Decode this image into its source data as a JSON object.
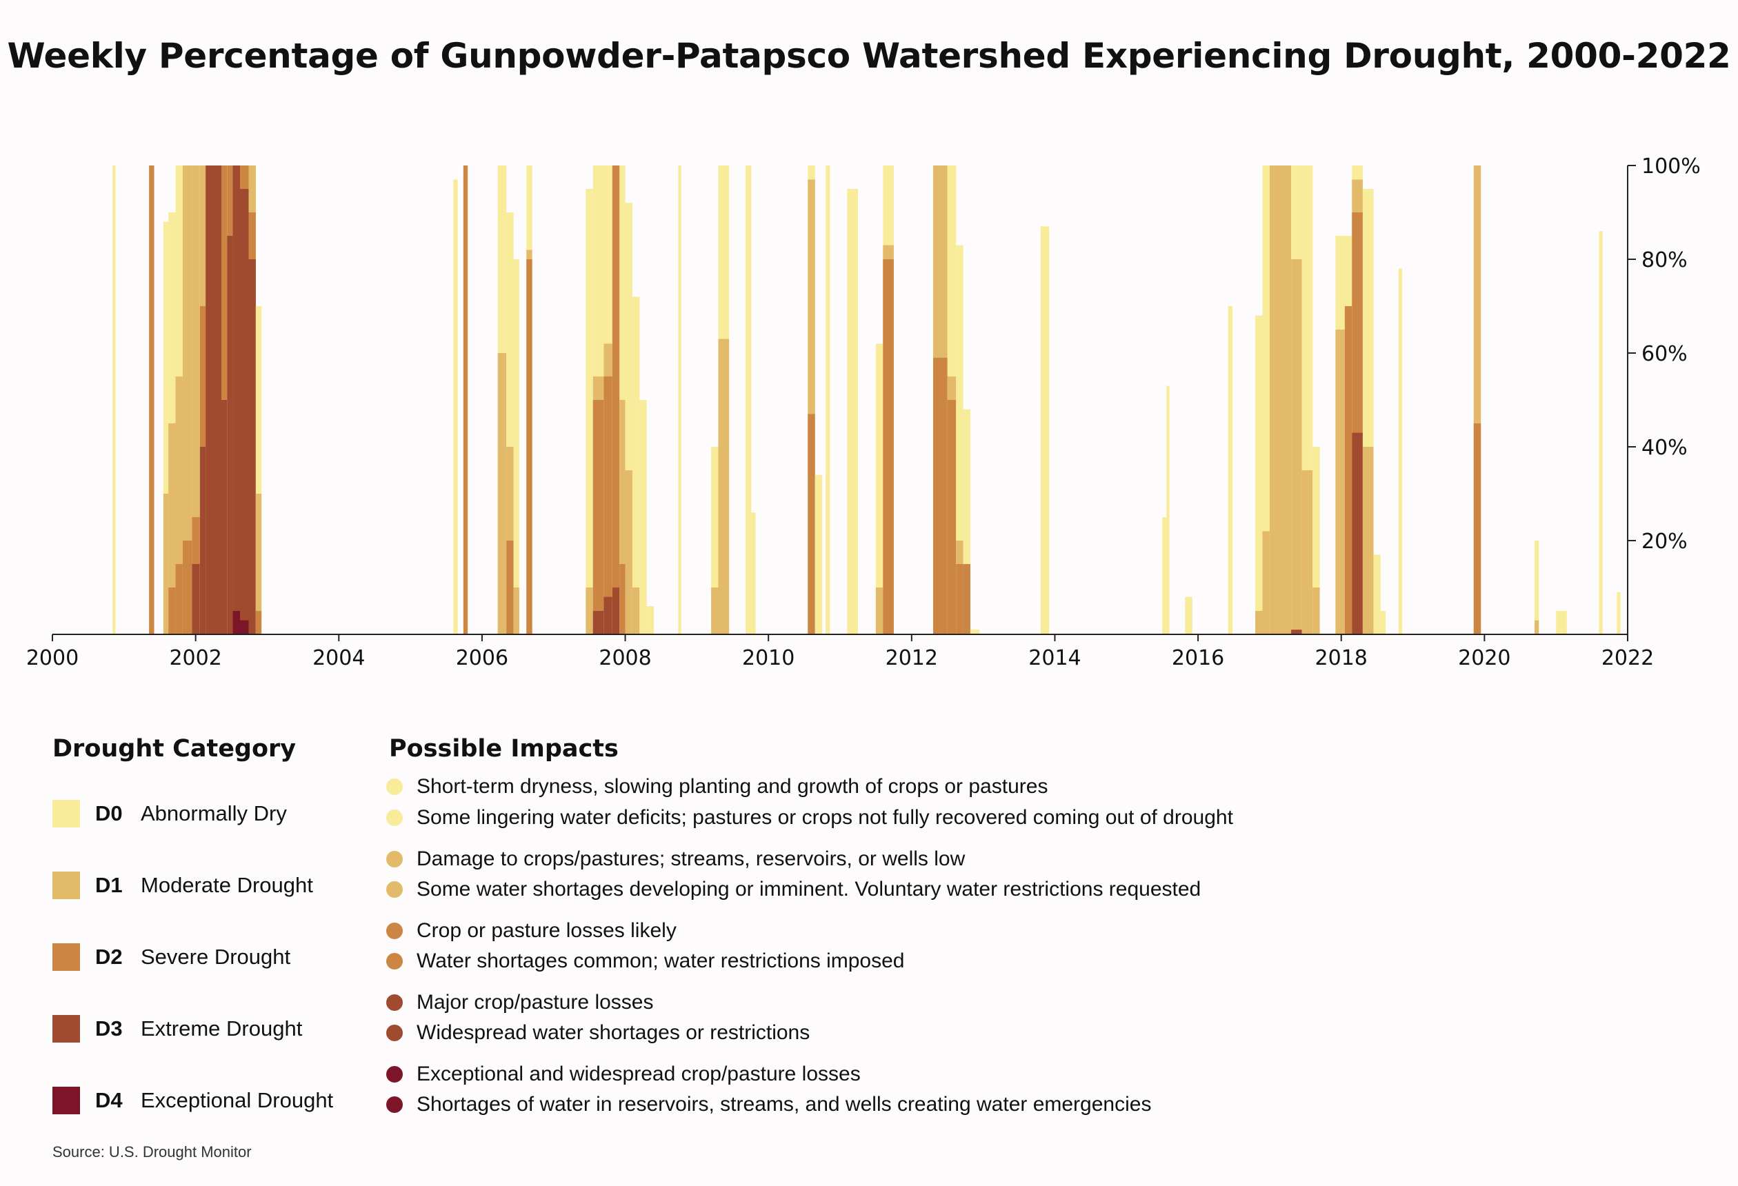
{
  "chart_data": {
    "type": "area",
    "title": "Weekly Percentage of Gunpowder-Patapsco Watershed Experiencing Drought, 2000-2022",
    "xlabel": "",
    "ylabel": "",
    "xlim": [
      2000,
      2022
    ],
    "ylim": [
      0,
      100
    ],
    "x_ticks": [
      2000,
      2002,
      2004,
      2006,
      2008,
      2010,
      2012,
      2014,
      2016,
      2018,
      2020,
      2022
    ],
    "y_ticks": [
      20,
      40,
      60,
      80,
      100
    ],
    "y_tick_labels": [
      "20%",
      "40%",
      "60%",
      "80%",
      "100%"
    ],
    "y_axis_side": "right",
    "series_colors": {
      "D0": "#f8eb9a",
      "D1": "#e3b96a",
      "D2": "#cd8544",
      "D3": "#a04b30",
      "D4": "#7b1527"
    },
    "episodes": [
      {
        "x0": 2000.84,
        "x1": 2000.88,
        "D0": 100,
        "D1": 0,
        "D2": 0,
        "D3": 0,
        "D4": 0
      },
      {
        "x0": 2001.35,
        "x1": 2001.42,
        "D0": 100,
        "D1": 100,
        "D2": 100,
        "D3": 0,
        "D4": 0
      },
      {
        "x0": 2001.55,
        "x1": 2001.62,
        "D0": 88,
        "D1": 30,
        "D2": 0,
        "D3": 0,
        "D4": 0
      },
      {
        "x0": 2001.62,
        "x1": 2001.72,
        "D0": 90,
        "D1": 45,
        "D2": 10,
        "D3": 0,
        "D4": 0
      },
      {
        "x0": 2001.72,
        "x1": 2001.82,
        "D0": 100,
        "D1": 55,
        "D2": 15,
        "D3": 0,
        "D4": 0
      },
      {
        "x0": 2001.82,
        "x1": 2001.95,
        "D0": 100,
        "D1": 100,
        "D2": 20,
        "D3": 0,
        "D4": 0
      },
      {
        "x0": 2001.95,
        "x1": 2002.06,
        "D0": 100,
        "D1": 100,
        "D2": 25,
        "D3": 15,
        "D4": 0
      },
      {
        "x0": 2002.06,
        "x1": 2002.14,
        "D0": 100,
        "D1": 100,
        "D2": 70,
        "D3": 40,
        "D4": 0
      },
      {
        "x0": 2002.14,
        "x1": 2002.36,
        "D0": 100,
        "D1": 100,
        "D2": 100,
        "D3": 100,
        "D4": 0
      },
      {
        "x0": 2002.36,
        "x1": 2002.44,
        "D0": 100,
        "D1": 100,
        "D2": 100,
        "D3": 50,
        "D4": 0
      },
      {
        "x0": 2002.44,
        "x1": 2002.52,
        "D0": 100,
        "D1": 100,
        "D2": 100,
        "D3": 85,
        "D4": 0
      },
      {
        "x0": 2002.52,
        "x1": 2002.62,
        "D0": 100,
        "D1": 100,
        "D2": 100,
        "D3": 100,
        "D4": 5
      },
      {
        "x0": 2002.62,
        "x1": 2002.74,
        "D0": 100,
        "D1": 100,
        "D2": 100,
        "D3": 95,
        "D4": 3
      },
      {
        "x0": 2002.74,
        "x1": 2002.84,
        "D0": 100,
        "D1": 100,
        "D2": 90,
        "D3": 80,
        "D4": 0
      },
      {
        "x0": 2002.84,
        "x1": 2002.92,
        "D0": 70,
        "D1": 30,
        "D2": 5,
        "D3": 0,
        "D4": 0
      },
      {
        "x0": 2005.6,
        "x1": 2005.66,
        "D0": 97,
        "D1": 0,
        "D2": 0,
        "D3": 0,
        "D4": 0
      },
      {
        "x0": 2005.74,
        "x1": 2005.8,
        "D0": 100,
        "D1": 100,
        "D2": 100,
        "D3": 0,
        "D4": 0
      },
      {
        "x0": 2006.22,
        "x1": 2006.34,
        "D0": 100,
        "D1": 60,
        "D2": 0,
        "D3": 0,
        "D4": 0
      },
      {
        "x0": 2006.34,
        "x1": 2006.44,
        "D0": 90,
        "D1": 40,
        "D2": 20,
        "D3": 0,
        "D4": 0
      },
      {
        "x0": 2006.44,
        "x1": 2006.52,
        "D0": 80,
        "D1": 10,
        "D2": 0,
        "D3": 0,
        "D4": 0
      },
      {
        "x0": 2006.62,
        "x1": 2006.7,
        "D0": 100,
        "D1": 82,
        "D2": 80,
        "D3": 0,
        "D4": 0
      },
      {
        "x0": 2007.45,
        "x1": 2007.55,
        "D0": 95,
        "D1": 10,
        "D2": 0,
        "D3": 0,
        "D4": 0
      },
      {
        "x0": 2007.55,
        "x1": 2007.7,
        "D0": 100,
        "D1": 55,
        "D2": 50,
        "D3": 5,
        "D4": 0
      },
      {
        "x0": 2007.7,
        "x1": 2007.82,
        "D0": 100,
        "D1": 62,
        "D2": 55,
        "D3": 8,
        "D4": 0
      },
      {
        "x0": 2007.82,
        "x1": 2007.92,
        "D0": 100,
        "D1": 100,
        "D2": 100,
        "D3": 10,
        "D4": 0
      },
      {
        "x0": 2007.92,
        "x1": 2008.0,
        "D0": 100,
        "D1": 50,
        "D2": 15,
        "D3": 0,
        "D4": 0
      },
      {
        "x0": 2008.0,
        "x1": 2008.1,
        "D0": 92,
        "D1": 35,
        "D2": 0,
        "D3": 0,
        "D4": 0
      },
      {
        "x0": 2008.1,
        "x1": 2008.2,
        "D0": 72,
        "D1": 10,
        "D2": 0,
        "D3": 0,
        "D4": 0
      },
      {
        "x0": 2008.2,
        "x1": 2008.3,
        "D0": 50,
        "D1": 0,
        "D2": 0,
        "D3": 0,
        "D4": 0
      },
      {
        "x0": 2008.3,
        "x1": 2008.4,
        "D0": 6,
        "D1": 0,
        "D2": 0,
        "D3": 0,
        "D4": 0
      },
      {
        "x0": 2008.74,
        "x1": 2008.78,
        "D0": 100,
        "D1": 0,
        "D2": 0,
        "D3": 0,
        "D4": 0
      },
      {
        "x0": 2009.2,
        "x1": 2009.3,
        "D0": 40,
        "D1": 10,
        "D2": 0,
        "D3": 0,
        "D4": 0
      },
      {
        "x0": 2009.3,
        "x1": 2009.45,
        "D0": 100,
        "D1": 63,
        "D2": 0,
        "D3": 0,
        "D4": 0
      },
      {
        "x0": 2009.68,
        "x1": 2009.76,
        "D0": 100,
        "D1": 0,
        "D2": 0,
        "D3": 0,
        "D4": 0
      },
      {
        "x0": 2009.76,
        "x1": 2009.82,
        "D0": 26,
        "D1": 0,
        "D2": 0,
        "D3": 0,
        "D4": 0
      },
      {
        "x0": 2010.55,
        "x1": 2010.65,
        "D0": 100,
        "D1": 97,
        "D2": 47,
        "D3": 0,
        "D4": 0
      },
      {
        "x0": 2010.65,
        "x1": 2010.75,
        "D0": 34,
        "D1": 0,
        "D2": 0,
        "D3": 0,
        "D4": 0
      },
      {
        "x0": 2010.8,
        "x1": 2010.86,
        "D0": 100,
        "D1": 0,
        "D2": 0,
        "D3": 0,
        "D4": 0
      },
      {
        "x0": 2011.1,
        "x1": 2011.25,
        "D0": 95,
        "D1": 0,
        "D2": 0,
        "D3": 0,
        "D4": 0
      },
      {
        "x0": 2011.5,
        "x1": 2011.6,
        "D0": 62,
        "D1": 10,
        "D2": 0,
        "D3": 0,
        "D4": 0
      },
      {
        "x0": 2011.6,
        "x1": 2011.75,
        "D0": 100,
        "D1": 83,
        "D2": 80,
        "D3": 0,
        "D4": 0
      },
      {
        "x0": 2012.3,
        "x1": 2012.5,
        "D0": 100,
        "D1": 100,
        "D2": 59,
        "D3": 0,
        "D4": 0
      },
      {
        "x0": 2012.5,
        "x1": 2012.62,
        "D0": 100,
        "D1": 55,
        "D2": 50,
        "D3": 0,
        "D4": 0
      },
      {
        "x0": 2012.62,
        "x1": 2012.72,
        "D0": 83,
        "D1": 20,
        "D2": 15,
        "D3": 0,
        "D4": 0
      },
      {
        "x0": 2012.72,
        "x1": 2012.82,
        "D0": 48,
        "D1": 15,
        "D2": 15,
        "D3": 0,
        "D4": 0
      },
      {
        "x0": 2012.82,
        "x1": 2012.95,
        "D0": 1,
        "D1": 0,
        "D2": 0,
        "D3": 0,
        "D4": 0
      },
      {
        "x0": 2013.8,
        "x1": 2013.92,
        "D0": 87,
        "D1": 0,
        "D2": 0,
        "D3": 0,
        "D4": 0
      },
      {
        "x0": 2015.5,
        "x1": 2015.56,
        "D0": 25,
        "D1": 0,
        "D2": 0,
        "D3": 0,
        "D4": 0
      },
      {
        "x0": 2015.56,
        "x1": 2015.6,
        "D0": 53,
        "D1": 0,
        "D2": 0,
        "D3": 0,
        "D4": 0
      },
      {
        "x0": 2015.82,
        "x1": 2015.92,
        "D0": 8,
        "D1": 0,
        "D2": 0,
        "D3": 0,
        "D4": 0
      },
      {
        "x0": 2016.42,
        "x1": 2016.48,
        "D0": 70,
        "D1": 0,
        "D2": 0,
        "D3": 0,
        "D4": 0
      },
      {
        "x0": 2016.8,
        "x1": 2016.9,
        "D0": 68,
        "D1": 5,
        "D2": 0,
        "D3": 0,
        "D4": 0
      },
      {
        "x0": 2016.9,
        "x1": 2017.0,
        "D0": 100,
        "D1": 22,
        "D2": 0,
        "D3": 0,
        "D4": 0
      },
      {
        "x0": 2017.0,
        "x1": 2017.3,
        "D0": 100,
        "D1": 100,
        "D2": 0,
        "D3": 0,
        "D4": 0
      },
      {
        "x0": 2017.3,
        "x1": 2017.45,
        "D0": 100,
        "D1": 80,
        "D2": 0,
        "D3": 1,
        "D4": 0
      },
      {
        "x0": 2017.45,
        "x1": 2017.6,
        "D0": 100,
        "D1": 35,
        "D2": 0,
        "D3": 0,
        "D4": 0
      },
      {
        "x0": 2017.6,
        "x1": 2017.7,
        "D0": 40,
        "D1": 10,
        "D2": 0,
        "D3": 0,
        "D4": 0
      },
      {
        "x0": 2017.92,
        "x1": 2018.05,
        "D0": 85,
        "D1": 65,
        "D2": 0,
        "D3": 0,
        "D4": 0
      },
      {
        "x0": 2018.05,
        "x1": 2018.15,
        "D0": 85,
        "D1": 70,
        "D2": 70,
        "D3": 0,
        "D4": 0
      },
      {
        "x0": 2018.15,
        "x1": 2018.3,
        "D0": 100,
        "D1": 97,
        "D2": 90,
        "D3": 43,
        "D4": 0
      },
      {
        "x0": 2018.3,
        "x1": 2018.45,
        "D0": 95,
        "D1": 40,
        "D2": 0,
        "D3": 0,
        "D4": 0
      },
      {
        "x0": 2018.45,
        "x1": 2018.55,
        "D0": 17,
        "D1": 0,
        "D2": 0,
        "D3": 0,
        "D4": 0
      },
      {
        "x0": 2018.55,
        "x1": 2018.62,
        "D0": 5,
        "D1": 0,
        "D2": 0,
        "D3": 0,
        "D4": 0
      },
      {
        "x0": 2018.8,
        "x1": 2018.85,
        "D0": 78,
        "D1": 0,
        "D2": 0,
        "D3": 0,
        "D4": 0
      },
      {
        "x0": 2019.85,
        "x1": 2019.95,
        "D0": 100,
        "D1": 100,
        "D2": 45,
        "D3": 0,
        "D4": 0
      },
      {
        "x0": 2020.7,
        "x1": 2020.76,
        "D0": 20,
        "D1": 3,
        "D2": 0,
        "D3": 0,
        "D4": 0
      },
      {
        "x0": 2021.0,
        "x1": 2021.15,
        "D0": 5,
        "D1": 0,
        "D2": 0,
        "D3": 0,
        "D4": 0
      },
      {
        "x0": 2021.6,
        "x1": 2021.65,
        "D0": 86,
        "D1": 0,
        "D2": 0,
        "D3": 0,
        "D4": 0
      },
      {
        "x0": 2021.85,
        "x1": 2021.9,
        "D0": 9,
        "D1": 0,
        "D2": 0,
        "D3": 0,
        "D4": 0
      }
    ]
  },
  "legend": {
    "category_heading": "Drought Category",
    "impacts_heading": "Possible Impacts",
    "categories": [
      {
        "code": "D0",
        "name": "Abnormally Dry",
        "color": "#f8eb9a",
        "impacts": [
          "Short-term dryness, slowing planting and growth of crops or pastures",
          "Some lingering water deficits; pastures or crops not fully recovered coming out of drought"
        ]
      },
      {
        "code": "D1",
        "name": "Moderate Drought",
        "color": "#e3b96a",
        "impacts": [
          "Damage to crops/pastures; streams, reservoirs, or wells low",
          "Some water shortages developing or imminent. Voluntary water restrictions requested"
        ]
      },
      {
        "code": "D2",
        "name": "Severe Drought",
        "color": "#cd8544",
        "impacts": [
          "Crop or pasture losses likely",
          "Water shortages common; water restrictions imposed"
        ]
      },
      {
        "code": "D3",
        "name": "Extreme Drought",
        "color": "#a04b30",
        "impacts": [
          "Major crop/pasture losses",
          "Widespread water shortages or restrictions"
        ]
      },
      {
        "code": "D4",
        "name": "Exceptional Drought",
        "color": "#7b1527",
        "impacts": [
          "Exceptional and widespread crop/pasture losses",
          "Shortages of water in reservoirs, streams, and wells creating water emergencies"
        ]
      }
    ]
  },
  "source": "Source: U.S. Drought Monitor"
}
